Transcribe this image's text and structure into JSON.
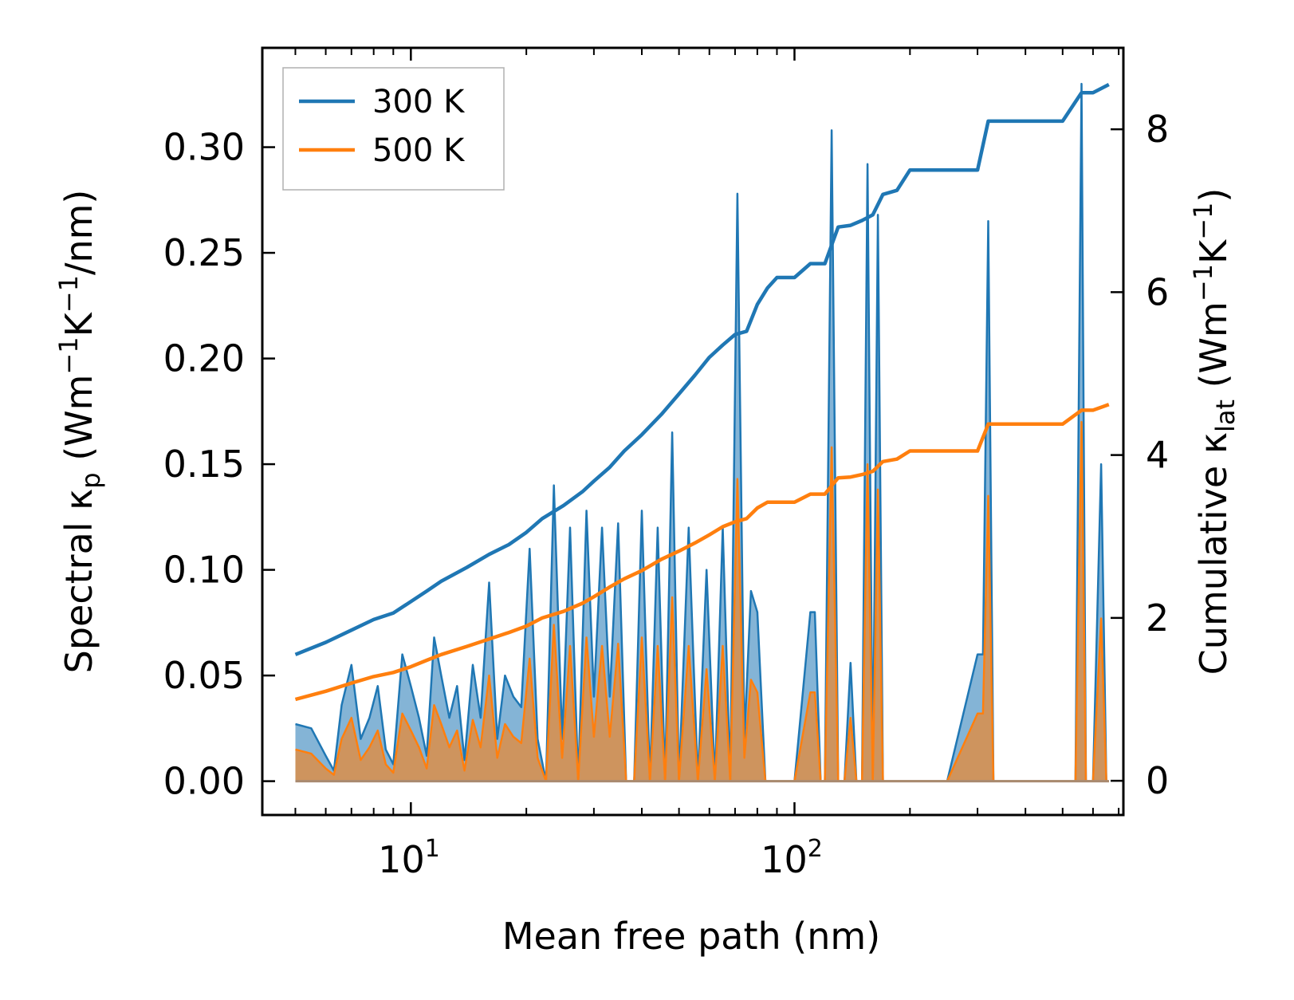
{
  "chart_data": {
    "type": "line",
    "title": "",
    "xlabel": "Mean free path (nm)",
    "ylabel": "Spectral κp (Wm⁻¹K⁻¹/nm)",
    "y2label": "Cumulative κlat (Wm⁻¹K⁻¹)",
    "xscale": "log",
    "xlim": [
      4.1,
      720
    ],
    "ylim": [
      -0.016,
      0.347
    ],
    "y2lim": [
      -0.42,
      9.0
    ],
    "xticks": [
      {
        "value": 10,
        "label": "10¹"
      },
      {
        "value": 100,
        "label": "10²"
      }
    ],
    "yticks": [
      {
        "value": 0.0,
        "label": "0.00"
      },
      {
        "value": 0.05,
        "label": "0.05"
      },
      {
        "value": 0.1,
        "label": "0.10"
      },
      {
        "value": 0.15,
        "label": "0.15"
      },
      {
        "value": 0.2,
        "label": "0.20"
      },
      {
        "value": 0.25,
        "label": "0.25"
      },
      {
        "value": 0.3,
        "label": "0.30"
      }
    ],
    "y2ticks": [
      {
        "value": 0,
        "label": "0"
      },
      {
        "value": 2,
        "label": "2"
      },
      {
        "value": 4,
        "label": "4"
      },
      {
        "value": 6,
        "label": "6"
      },
      {
        "value": 8,
        "label": "8"
      }
    ],
    "legend": {
      "position": "top-left",
      "entries": [
        "300 K",
        "500 K"
      ]
    },
    "series": [
      {
        "name": "300 K",
        "color": "#1f77b4",
        "axis": "right",
        "kind": "cumulative",
        "x": [
          5,
          6,
          7,
          8,
          9,
          10,
          11,
          12,
          14,
          16,
          18,
          20,
          22,
          25,
          28,
          30,
          33,
          36,
          40,
          45,
          50,
          55,
          60,
          65,
          70,
          75,
          80,
          85,
          90,
          100,
          110,
          120,
          130,
          140,
          150,
          160,
          170,
          185,
          200,
          250,
          300,
          320,
          400,
          500,
          560,
          600,
          660
        ],
        "y": [
          1.55,
          1.7,
          1.85,
          1.98,
          2.06,
          2.2,
          2.33,
          2.45,
          2.62,
          2.78,
          2.9,
          3.05,
          3.22,
          3.38,
          3.55,
          3.68,
          3.85,
          4.05,
          4.25,
          4.5,
          4.75,
          4.98,
          5.2,
          5.35,
          5.48,
          5.52,
          5.85,
          6.05,
          6.18,
          6.18,
          6.35,
          6.35,
          6.8,
          6.82,
          6.88,
          6.95,
          7.2,
          7.25,
          7.5,
          7.5,
          7.5,
          8.1,
          8.1,
          8.1,
          8.45,
          8.45,
          8.55
        ]
      },
      {
        "name": "500 K",
        "color": "#ff7f0e",
        "axis": "right",
        "kind": "cumulative",
        "x": [
          5,
          6,
          7,
          8,
          9,
          10,
          11,
          12,
          14,
          16,
          18,
          20,
          22,
          25,
          28,
          30,
          33,
          36,
          40,
          45,
          50,
          55,
          60,
          65,
          70,
          75,
          80,
          85,
          90,
          100,
          110,
          120,
          130,
          140,
          150,
          160,
          170,
          185,
          200,
          250,
          300,
          320,
          400,
          500,
          560,
          600,
          660
        ],
        "y": [
          1.0,
          1.1,
          1.2,
          1.28,
          1.33,
          1.4,
          1.48,
          1.55,
          1.65,
          1.74,
          1.82,
          1.9,
          2.0,
          2.08,
          2.18,
          2.26,
          2.38,
          2.48,
          2.58,
          2.72,
          2.82,
          2.92,
          3.02,
          3.12,
          3.18,
          3.22,
          3.35,
          3.42,
          3.42,
          3.42,
          3.52,
          3.52,
          3.72,
          3.73,
          3.76,
          3.8,
          3.92,
          3.95,
          4.05,
          4.05,
          4.05,
          4.38,
          4.38,
          4.38,
          4.55,
          4.55,
          4.62
        ]
      }
    ],
    "spectral_series": [
      {
        "name": "300 K spectral",
        "color": "#1f77b4",
        "axis": "left",
        "kind": "filled",
        "x": [
          5,
          5.5,
          6,
          6.3,
          6.6,
          7,
          7.4,
          7.8,
          8.2,
          8.6,
          9,
          9.5,
          10,
          10.5,
          11,
          11.5,
          12,
          12.6,
          13.2,
          13.8,
          14.5,
          15.2,
          16,
          16.8,
          17.6,
          18.5,
          19.4,
          20.4,
          21.4,
          22.5,
          23.6,
          24.8,
          26,
          27.3,
          28.7,
          30,
          31.5,
          33,
          34.7,
          36.4,
          38.2,
          40,
          42,
          44,
          46,
          48,
          50,
          53,
          56,
          59,
          62,
          65,
          68,
          71,
          74,
          77,
          80,
          84,
          88,
          92,
          96,
          100,
          110,
          113,
          117,
          120,
          125,
          130,
          135,
          140,
          145,
          150,
          155,
          160,
          165,
          170,
          175,
          180,
          185,
          190,
          200,
          250,
          300,
          310,
          320,
          330,
          340,
          350,
          400,
          500,
          540,
          560,
          575,
          600,
          630,
          650,
          660
        ],
        "y": [
          0.027,
          0.025,
          0.012,
          0.005,
          0.036,
          0.055,
          0.02,
          0.03,
          0.045,
          0.015,
          0.008,
          0.06,
          0.045,
          0.03,
          0.012,
          0.068,
          0.05,
          0.03,
          0.045,
          0.01,
          0.055,
          0.03,
          0.094,
          0.02,
          0.05,
          0.04,
          0.035,
          0.11,
          0.02,
          0.0,
          0.14,
          0.02,
          0.12,
          0.0,
          0.128,
          0.04,
          0.12,
          0.04,
          0.122,
          0.0,
          0.0,
          0.128,
          0.0,
          0.12,
          0.0,
          0.165,
          0.0,
          0.12,
          0.0,
          0.1,
          0.0,
          0.12,
          0.0,
          0.278,
          0.02,
          0.09,
          0.08,
          0.0,
          0.0,
          0.0,
          0.0,
          0.0,
          0.08,
          0.08,
          0.0,
          0.0,
          0.308,
          0.0,
          0.0,
          0.056,
          0.0,
          0.0,
          0.292,
          0.0,
          0.268,
          0.0,
          0.0,
          0.0,
          0.0,
          0.0,
          0.0,
          0.0,
          0.06,
          0.06,
          0.265,
          0.0,
          0.0,
          0.0,
          0.0,
          0.0,
          0.0,
          0.33,
          0.0,
          0.0,
          0.15,
          0.0,
          0.0
        ]
      },
      {
        "name": "500 K spectral",
        "color": "#ff7f0e",
        "axis": "left",
        "kind": "filled",
        "x": [
          5,
          5.5,
          6,
          6.3,
          6.6,
          7,
          7.4,
          7.8,
          8.2,
          8.6,
          9,
          9.5,
          10,
          10.5,
          11,
          11.5,
          12,
          12.6,
          13.2,
          13.8,
          14.5,
          15.2,
          16,
          16.8,
          17.6,
          18.5,
          19.4,
          20.4,
          21.4,
          22.5,
          23.6,
          24.8,
          26,
          27.3,
          28.7,
          30,
          31.5,
          33,
          34.7,
          36.4,
          38.2,
          40,
          42,
          44,
          46,
          48,
          50,
          53,
          56,
          59,
          62,
          65,
          68,
          71,
          74,
          77,
          80,
          84,
          88,
          92,
          96,
          100,
          110,
          113,
          117,
          120,
          125,
          130,
          135,
          140,
          145,
          150,
          155,
          160,
          165,
          170,
          175,
          180,
          185,
          190,
          200,
          250,
          300,
          310,
          320,
          330,
          340,
          350,
          400,
          500,
          540,
          560,
          575,
          600,
          630,
          650,
          660
        ],
        "y": [
          0.015,
          0.013,
          0.006,
          0.003,
          0.02,
          0.03,
          0.01,
          0.016,
          0.024,
          0.008,
          0.004,
          0.032,
          0.024,
          0.016,
          0.006,
          0.036,
          0.027,
          0.016,
          0.024,
          0.005,
          0.029,
          0.016,
          0.05,
          0.011,
          0.027,
          0.021,
          0.018,
          0.058,
          0.011,
          0.0,
          0.074,
          0.011,
          0.064,
          0.0,
          0.068,
          0.021,
          0.064,
          0.021,
          0.065,
          0.0,
          0.0,
          0.068,
          0.0,
          0.064,
          0.0,
          0.087,
          0.0,
          0.064,
          0.0,
          0.053,
          0.0,
          0.064,
          0.0,
          0.143,
          0.011,
          0.048,
          0.042,
          0.0,
          0.0,
          0.0,
          0.0,
          0.0,
          0.042,
          0.042,
          0.0,
          0.0,
          0.158,
          0.0,
          0.0,
          0.03,
          0.0,
          0.0,
          0.15,
          0.0,
          0.138,
          0.0,
          0.0,
          0.0,
          0.0,
          0.0,
          0.0,
          0.0,
          0.032,
          0.032,
          0.135,
          0.0,
          0.0,
          0.0,
          0.0,
          0.0,
          0.0,
          0.17,
          0.0,
          0.0,
          0.077,
          0.0,
          0.0
        ]
      }
    ]
  }
}
